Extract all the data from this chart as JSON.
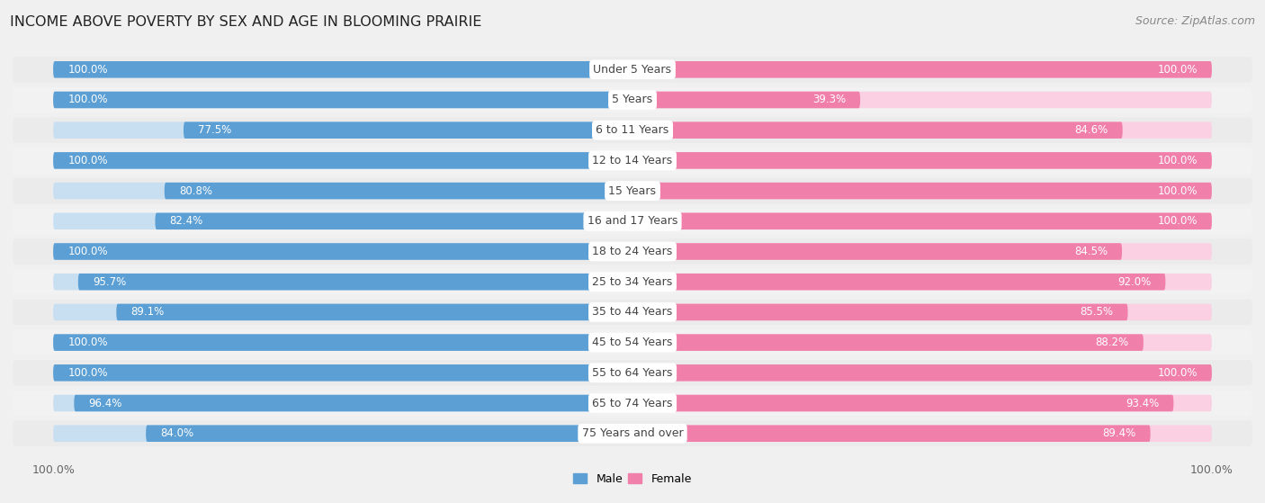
{
  "title": "INCOME ABOVE POVERTY BY SEX AND AGE IN BLOOMING PRAIRIE",
  "source": "Source: ZipAtlas.com",
  "categories": [
    "Under 5 Years",
    "5 Years",
    "6 to 11 Years",
    "12 to 14 Years",
    "15 Years",
    "16 and 17 Years",
    "18 to 24 Years",
    "25 to 34 Years",
    "35 to 44 Years",
    "45 to 54 Years",
    "55 to 64 Years",
    "65 to 74 Years",
    "75 Years and over"
  ],
  "male_values": [
    100.0,
    100.0,
    77.5,
    100.0,
    80.8,
    82.4,
    100.0,
    95.7,
    89.1,
    100.0,
    100.0,
    96.4,
    84.0
  ],
  "female_values": [
    100.0,
    39.3,
    84.6,
    100.0,
    100.0,
    100.0,
    84.5,
    92.0,
    85.5,
    88.2,
    100.0,
    93.4,
    89.4
  ],
  "male_color_dark": "#5B9FD4",
  "male_color_light": "#C8DFF2",
  "female_color_dark": "#F07FAA",
  "female_color_light": "#FAD0E2",
  "bg_color": "#F0F0F0",
  "row_bg": "#E8E8E8",
  "bar_height": 0.55,
  "legend_male": "Male",
  "legend_female": "Female",
  "title_fontsize": 11.5,
  "label_fontsize": 9,
  "source_fontsize": 9,
  "value_fontsize": 8.5,
  "cat_fontsize": 9
}
